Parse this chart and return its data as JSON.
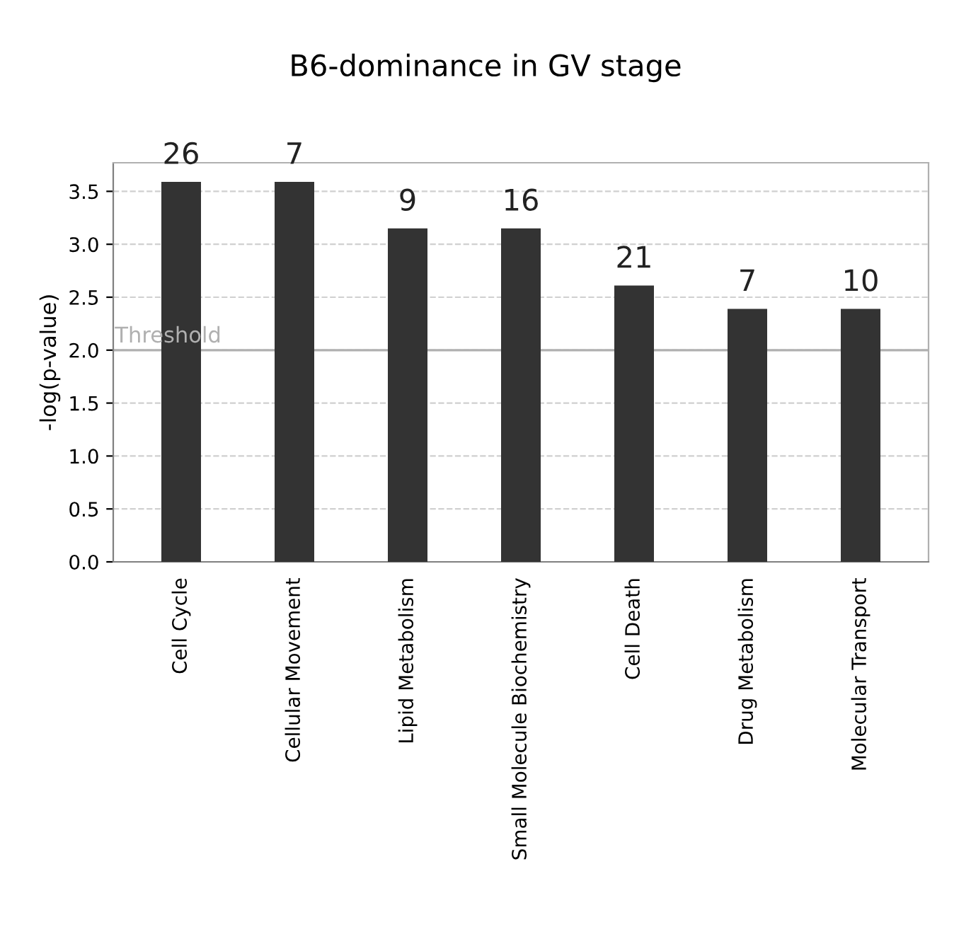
{
  "chart_data": {
    "type": "bar",
    "title": "B6-dominance in GV stage",
    "ylabel": "-log(p-value)",
    "categories": [
      "Cell Cycle",
      "Cellular Movement",
      "Lipid Metabolism",
      "Small Molecule Biochemistry",
      "Cell Death",
      "Drug Metabolism",
      "Molecular Transport"
    ],
    "values": [
      3.59,
      3.59,
      3.15,
      3.15,
      2.61,
      2.39,
      2.39
    ],
    "annotations": [
      {
        "text": "26",
        "x": "Cell Cycle",
        "y": 3.59
      },
      {
        "text": "7",
        "x": "Cellular Movement",
        "y": 3.59
      },
      {
        "text": "9",
        "x": "Lipid Metabolism",
        "y": 3.15
      },
      {
        "text": "16",
        "x": "Small Molecule Biochemistry",
        "y": 3.15
      },
      {
        "text": "21",
        "x": "Cell Death",
        "y": 2.61
      },
      {
        "text": "7",
        "x": "Drug Metabolism",
        "y": 2.39
      },
      {
        "text": "10",
        "x": "Molecular Transport",
        "y": 2.39
      }
    ],
    "color": "#333333",
    "ylim": [
      0,
      3.77
    ],
    "yticks": [
      {
        "value": 0,
        "label": "0.0"
      },
      {
        "value": 0.5,
        "label": "0.5"
      },
      {
        "value": 1,
        "label": "1.0"
      },
      {
        "value": 1.5,
        "label": "1.5"
      },
      {
        "value": 2,
        "label": "2.0"
      },
      {
        "value": 2.5,
        "label": "2.5"
      },
      {
        "value": 3,
        "label": "3.0"
      },
      {
        "value": 3.5,
        "label": "3.5"
      }
    ],
    "grid": "y",
    "ref_lines": [
      {
        "axis": "y",
        "value": 2,
        "label": "Threshold",
        "color": "#b0b0b0",
        "line_style": "solid"
      }
    ]
  }
}
